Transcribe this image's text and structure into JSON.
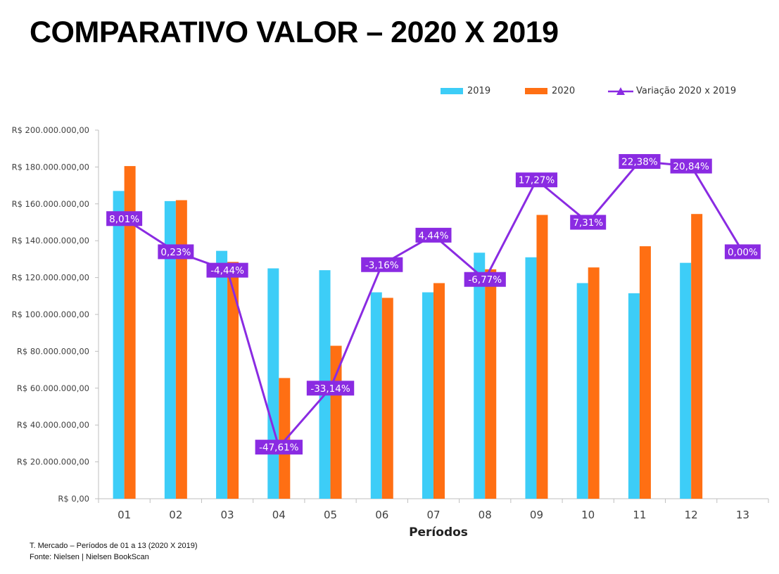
{
  "title": "COMPARATIVO VALOR – 2020 X 2019",
  "footnotes": {
    "line1": "T. Mercado – Períodos de 01 a 13 (2020 X 2019)",
    "line2": "Fonte: Nielsen | Nielsen BookScan"
  },
  "colors": {
    "series_2019": "#3DCDF7",
    "series_2020": "#FF6F13",
    "variation": "#8A2BE2",
    "axis": "#bfbfbf"
  },
  "chart_data": {
    "type": "bar",
    "xlabel": "Períodos",
    "categories": [
      "01",
      "02",
      "03",
      "04",
      "05",
      "06",
      "07",
      "08",
      "09",
      "10",
      "11",
      "12",
      "13"
    ],
    "y_ticks": [
      "R$ 0,00",
      "R$ 20.000.000,00",
      "R$ 40.000.000,00",
      "R$ 60.000.000,00",
      "R$ 80.000.000,00",
      "R$ 100.000.000,00",
      "R$ 120.000.000,00",
      "R$ 140.000.000,00",
      "R$ 160.000.000,00",
      "R$ 180.000.000,00",
      "R$ 200.000.000,00"
    ],
    "ylim": [
      0,
      200000000
    ],
    "legend_position": "top-right",
    "grid": false,
    "series": [
      {
        "name": "2019",
        "type": "bar",
        "values": [
          167000000,
          161500000,
          134500000,
          125000000,
          124000000,
          112000000,
          112000000,
          133500000,
          131000000,
          117000000,
          111500000,
          128000000,
          null
        ]
      },
      {
        "name": "2020",
        "type": "bar",
        "values": [
          180500000,
          162000000,
          128500000,
          65500000,
          83000000,
          109000000,
          117000000,
          124500000,
          154000000,
          125500000,
          137000000,
          154500000,
          null
        ]
      },
      {
        "name": "Variação 2020 x 2019",
        "type": "line",
        "labels": [
          "8,01%",
          "0,23%",
          "-4,44%",
          "-47,61%",
          "-33,14%",
          "-3,16%",
          "4,44%",
          "-6,77%",
          "17,27%",
          "7,31%",
          "22,38%",
          "20,84%",
          "0,00%"
        ],
        "position_values": [
          152000000,
          134000000,
          124000000,
          28000000,
          60000000,
          127000000,
          143000000,
          119000000,
          173000000,
          150000000,
          183000000,
          180500000,
          134000000
        ]
      }
    ]
  }
}
